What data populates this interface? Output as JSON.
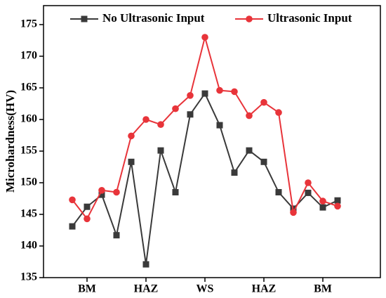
{
  "chart_data": {
    "type": "line",
    "y_label": "Microhardness(HV)",
    "categories": [
      null,
      "BM",
      null,
      null,
      null,
      "HAZ",
      null,
      null,
      null,
      "WS",
      null,
      null,
      null,
      "HAZ",
      null,
      null,
      null,
      "BM",
      null
    ],
    "series": [
      {
        "name": "No Ultrasonic Input",
        "color": "#3a3a3a",
        "marker": "square",
        "values": [
          143.1,
          146.2,
          148.1,
          141.7,
          153.3,
          137.1,
          155.1,
          148.5,
          160.8,
          164.1,
          159.1,
          151.6,
          155.1,
          153.3,
          148.5,
          145.9,
          148.4,
          146.1,
          147.2
        ]
      },
      {
        "name": "Ultrasonic Input",
        "color": "#e8343a",
        "marker": "circle",
        "values": [
          147.3,
          144.3,
          148.8,
          148.5,
          157.4,
          160.0,
          159.2,
          161.7,
          163.8,
          173.0,
          164.6,
          164.4,
          160.6,
          162.7,
          161.1,
          145.3,
          150.0,
          147.1,
          146.3
        ]
      }
    ],
    "ylim": [
      135,
      178
    ],
    "yticks": [
      135,
      140,
      145,
      150,
      155,
      160,
      165,
      170,
      175
    ],
    "legend": "top"
  }
}
